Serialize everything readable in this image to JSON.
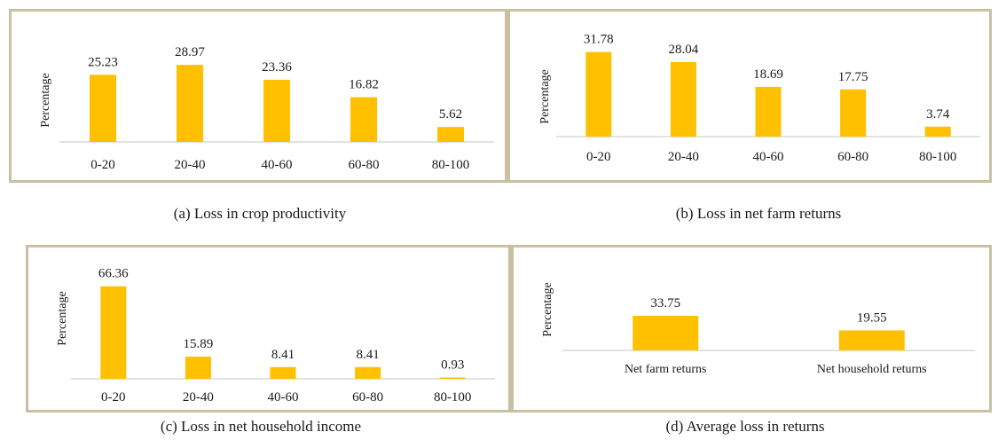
{
  "colors": {
    "bar": "#ffc000",
    "axis": "#d9d9d9",
    "border": "#c9bfa2",
    "text": "#1a1a1a"
  },
  "chart_data": [
    {
      "type": "bar",
      "caption": "(a) Loss in crop productivity",
      "ylabel": "Percentage",
      "categories": [
        "0-20",
        "20-40",
        "40-60",
        "60-80",
        "80-100"
      ],
      "values": [
        25.23,
        28.97,
        23.36,
        16.82,
        5.62
      ],
      "value_labels": [
        "25.23",
        "28.97",
        "23.36",
        "16.82",
        "5.62"
      ],
      "ylim": [
        0,
        35
      ],
      "grid": false,
      "legend": "none"
    },
    {
      "type": "bar",
      "caption": "(b) Loss in net farm returns",
      "ylabel": "Percentage",
      "categories": [
        "0-20",
        "20-40",
        "40-60",
        "60-80",
        "80-100"
      ],
      "values": [
        31.78,
        28.04,
        18.69,
        17.75,
        3.74
      ],
      "value_labels": [
        "31.78",
        "28.04",
        "18.69",
        "17.75",
        "3.74"
      ],
      "ylim": [
        0,
        35
      ],
      "grid": false,
      "legend": "none"
    },
    {
      "type": "bar",
      "caption": "(c) Loss in net household income",
      "ylabel": "Percentage",
      "categories": [
        "0-20",
        "20-40",
        "40-60",
        "60-80",
        "80-100"
      ],
      "values": [
        66.36,
        15.89,
        8.41,
        8.41,
        0.93
      ],
      "value_labels": [
        "66.36",
        "15.89",
        "8.41",
        "8.41",
        "0.93"
      ],
      "ylim": [
        0,
        70
      ],
      "grid": false,
      "legend": "none"
    },
    {
      "type": "bar",
      "caption": "(d) Average loss in returns",
      "ylabel": "Percentage",
      "categories": [
        "Net farm returns",
        "Net household returns"
      ],
      "values": [
        33.75,
        19.55
      ],
      "value_labels": [
        "33.75",
        "19.55"
      ],
      "ylim": [
        0,
        35
      ],
      "grid": false,
      "legend": "none"
    }
  ]
}
